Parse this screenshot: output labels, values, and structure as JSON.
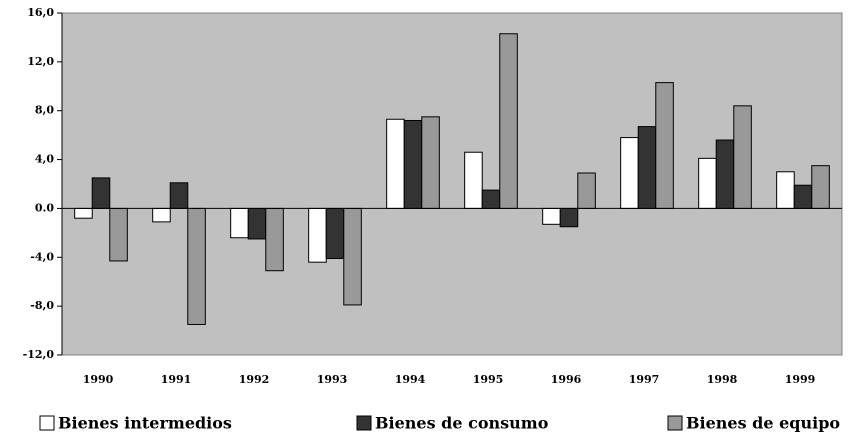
{
  "chart_data": {
    "type": "bar",
    "categories": [
      "1990",
      "1991",
      "1992",
      "1993",
      "1994",
      "1995",
      "1996",
      "1997",
      "1998",
      "1999"
    ],
    "series": [
      {
        "name": "Bienes intermedios",
        "color": "#ffffff",
        "values": [
          -0.8,
          -1.1,
          -2.4,
          -4.4,
          7.3,
          4.6,
          -1.3,
          5.8,
          4.1,
          3.0
        ]
      },
      {
        "name": "Bienes de consumo",
        "color": "#333333",
        "values": [
          2.5,
          2.1,
          -2.5,
          -4.1,
          7.2,
          1.5,
          -1.5,
          6.7,
          5.6,
          1.9
        ]
      },
      {
        "name": "Bienes de equipo",
        "color": "#999999",
        "values": [
          -4.3,
          -9.5,
          -5.1,
          -7.9,
          7.5,
          14.3,
          2.9,
          10.3,
          8.4,
          3.5
        ]
      }
    ],
    "ylim": [
      -12,
      16
    ],
    "yticks": [
      {
        "value": 16,
        "label": "16,0"
      },
      {
        "value": 12,
        "label": "12,0"
      },
      {
        "value": 8,
        "label": "8,0"
      },
      {
        "value": 4,
        "label": "4,0"
      },
      {
        "value": 0,
        "label": "0.0"
      },
      {
        "value": -4,
        "label": "-4,0"
      },
      {
        "value": -8,
        "label": "-8,0"
      },
      {
        "value": -12,
        "label": "-12,0"
      }
    ],
    "legend": "bottom",
    "plot_background": "#c0c0c0",
    "grid": false
  }
}
